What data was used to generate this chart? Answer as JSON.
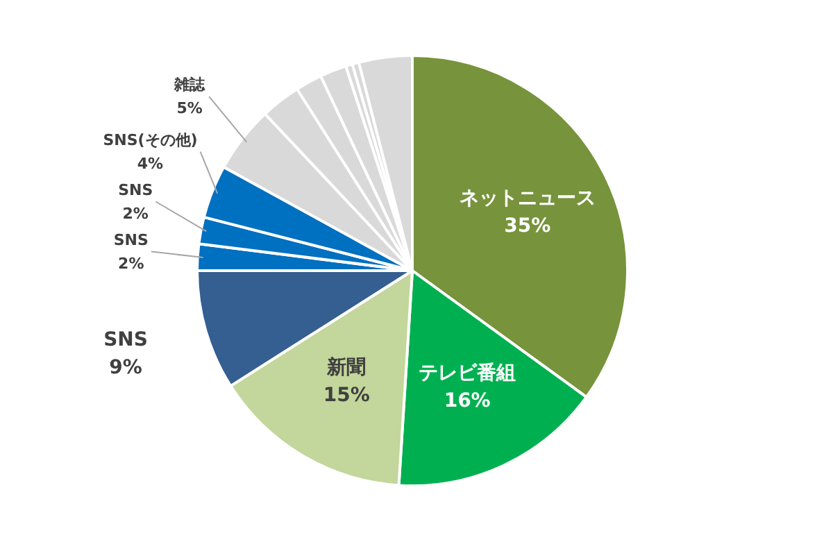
{
  "chart_data": {
    "type": "pie",
    "categories": [
      "ネットニュース",
      "テレビ番組",
      "新聞",
      "SNS",
      "SNS",
      "SNS",
      "SNS(その他)",
      "雑誌",
      null,
      null,
      null,
      null,
      null,
      null
    ],
    "values": [
      35,
      16,
      15,
      9,
      2,
      2,
      4,
      5,
      3,
      2,
      2,
      0.5,
      0.5,
      4
    ],
    "colors": [
      "#77933c",
      "#00b050",
      "#c3d69b",
      "#355e91",
      "#0070c0",
      "#0070c0",
      "#0070c0",
      "#d9d9d9",
      "#d9d9d9",
      "#d9d9d9",
      "#d9d9d9",
      "#d9d9d9",
      "#d9d9d9",
      "#d9d9d9"
    ],
    "value_labels": [
      "35%",
      "16%",
      "15%",
      "9%",
      "2%",
      "2%",
      "4%",
      "5%",
      null,
      null,
      null,
      null,
      null,
      null
    ]
  }
}
